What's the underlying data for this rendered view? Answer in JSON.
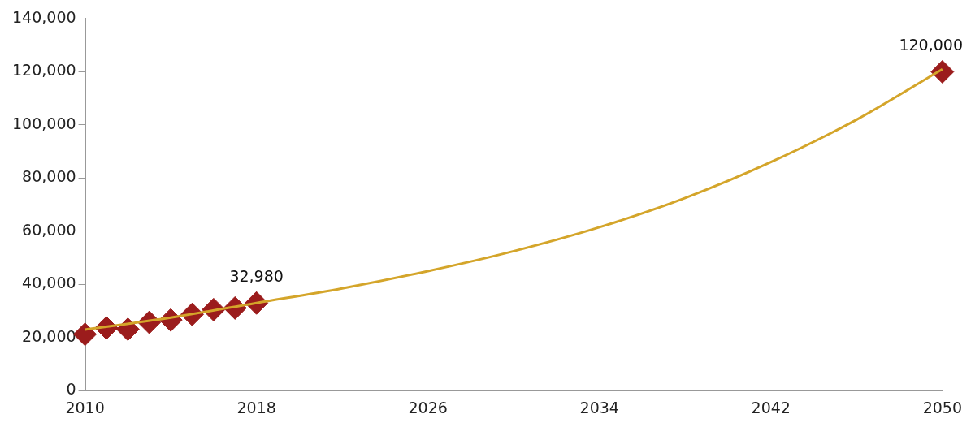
{
  "chart_data": {
    "type": "scatter",
    "xlim": [
      2010,
      2050
    ],
    "xticks": [
      2010,
      2018,
      2026,
      2034,
      2042,
      2050
    ],
    "ylim": [
      0,
      140000
    ],
    "yticks": [
      0,
      {
        "value": 20000,
        "label": "20,000"
      },
      {
        "value": 40000,
        "label": "40,000"
      },
      {
        "value": 60000,
        "label": "60,000"
      },
      {
        "value": 80000,
        "label": "80,000"
      },
      {
        "value": 100000,
        "label": "100,000"
      },
      {
        "value": 120000,
        "label": "120,000"
      },
      {
        "value": 140000,
        "label": "140,000"
      }
    ],
    "grid": false,
    "legend": false,
    "marker": "diamond",
    "series": [
      {
        "type": "line",
        "color": "#d4a52a",
        "marker": "none",
        "x": [
          2010,
          2014,
          2018,
          2022,
          2026,
          2030,
          2034,
          2038,
          2042,
          2046,
          2050
        ],
        "values": [
          23000,
          27500,
          33000,
          38500,
          45000,
          52500,
          61500,
          72500,
          86000,
          102000,
          121000
        ]
      },
      {
        "type": "scatter",
        "color": "#9b1c1c",
        "x": [
          2010,
          2011,
          2012,
          2013,
          2014,
          2015,
          2016,
          2017,
          2018,
          2050
        ],
        "values": [
          21200,
          23600,
          23100,
          25700,
          26600,
          28700,
          30500,
          31100,
          32980,
          120000
        ],
        "value_labels": [
          null,
          null,
          null,
          null,
          null,
          null,
          null,
          null,
          "32,980",
          "120,000"
        ]
      }
    ]
  }
}
